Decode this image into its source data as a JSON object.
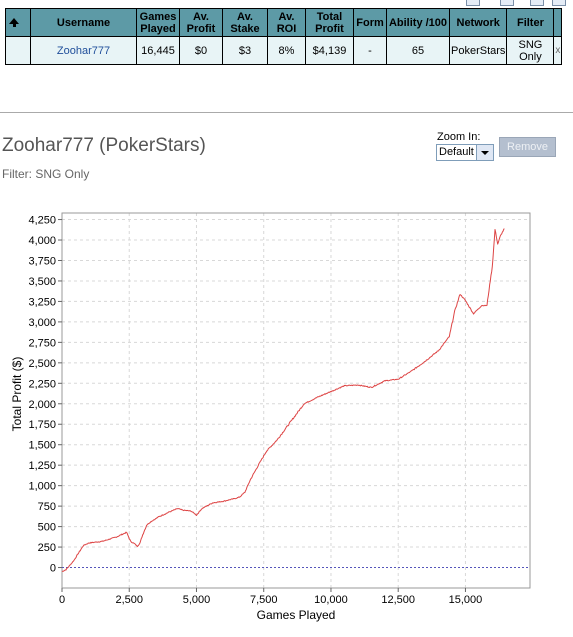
{
  "table": {
    "headers": [
      "Username",
      "Games\nPlayed",
      "Av.\nProfit",
      "Av.\nStake",
      "Av.\nROI",
      "Total\nProfit",
      "Form",
      "Ability /100",
      "Network",
      "Filter"
    ],
    "row": {
      "username": "Zoohar777",
      "games_played": "16,445",
      "av_profit": "$0",
      "av_stake": "$3",
      "av_roi": "8%",
      "total_profit": "$4,139",
      "form": "-",
      "ability": "65",
      "network": "PokerStars",
      "filter": "SNG\nOnly",
      "remove_x": "x"
    }
  },
  "player_title": "Zoohar777 (PokerStars)",
  "filter_text": "Filter: SNG Only",
  "zoom": {
    "label": "Zoom In:",
    "selected": "Default"
  },
  "remove_label": "Remove",
  "chart_data": {
    "type": "line",
    "xlabel": "Games Played",
    "ylabel": "Total Profit ($)",
    "xlim": [
      0,
      17400
    ],
    "ylim": [
      -250,
      4330
    ],
    "x_ticks": [
      0,
      2500,
      5000,
      7500,
      10000,
      12500,
      15000
    ],
    "x_tick_labels": [
      "0",
      "2,500",
      "5,000",
      "7,500",
      "10,000",
      "12,500",
      "15,000"
    ],
    "y_ticks": [
      0,
      250,
      500,
      750,
      1000,
      1250,
      1500,
      1750,
      2000,
      2250,
      2500,
      2750,
      3000,
      3250,
      3500,
      3750,
      4000,
      4250
    ],
    "y_tick_labels": [
      "0",
      "250",
      "500",
      "750",
      "1,000",
      "1,250",
      "1,500",
      "1,750",
      "2,000",
      "2,250",
      "2,500",
      "2,750",
      "3,000",
      "3,250",
      "3,500",
      "3,750",
      "4,000",
      "4,250"
    ],
    "grid": true,
    "zero_line": true,
    "series_color": "#dd4444",
    "zero_line_color": "#5555bb",
    "series": [
      {
        "x": [
          0,
          150,
          300,
          450,
          600,
          800,
          1000,
          1500,
          2000,
          2400,
          2550,
          2700,
          2800,
          2900,
          3000,
          3150,
          3300,
          3600,
          4000,
          4300,
          4500,
          4800,
          5000,
          5200,
          5600,
          6000,
          6400,
          6600,
          6800,
          7000,
          7300,
          7600,
          8000,
          8500,
          9000,
          9500,
          10000,
          10500,
          11000,
          11500,
          12000,
          12500,
          13000,
          13500,
          14000,
          14400,
          14600,
          14800,
          15000,
          15300,
          15600,
          15800,
          15900,
          16000,
          16100,
          16200,
          16300,
          16445
        ],
        "y": [
          -50,
          -25,
          30,
          90,
          170,
          270,
          300,
          320,
          370,
          430,
          320,
          290,
          260,
          300,
          400,
          520,
          560,
          620,
          680,
          720,
          700,
          690,
          640,
          720,
          790,
          810,
          840,
          860,
          920,
          1070,
          1250,
          1420,
          1560,
          1780,
          2000,
          2080,
          2150,
          2220,
          2230,
          2200,
          2280,
          2300,
          2400,
          2520,
          2650,
          2820,
          3130,
          3340,
          3260,
          3100,
          3200,
          3200,
          3450,
          3680,
          4130,
          3950,
          4050,
          4139
        ]
      }
    ]
  }
}
